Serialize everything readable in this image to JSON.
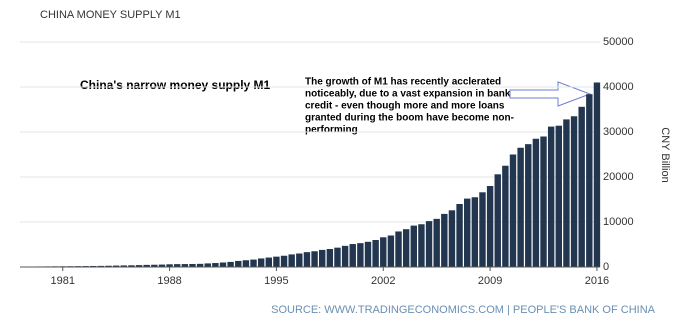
{
  "chart_data": {
    "type": "bar",
    "title": "CHINA MONEY SUPPLY M1",
    "annotation": "China's narrow money supply M1",
    "note": [
      "The growth of M1 has recently acclerated",
      "noticeably, due to a vast expansion in bank",
      "credit - even though more and more loans",
      "granted during the boom have become non-",
      "performing"
    ],
    "y_label": "CNY Billion",
    "source": "SOURCE: WWW.TRADINGECONOMICS.COM | PEOPLE'S BANK OF CHINA",
    "color": "#23364f",
    "grid": true,
    "x": [
      1978.5,
      1979,
      1979.5,
      1980,
      1980.5,
      1981,
      1981.5,
      1982,
      1982.5,
      1983,
      1983.5,
      1984,
      1984.5,
      1985,
      1985.5,
      1986,
      1986.5,
      1987,
      1987.5,
      1988,
      1988.5,
      1989,
      1989.5,
      1990,
      1990.5,
      1991,
      1991.5,
      1992,
      1992.5,
      1993,
      1993.5,
      1994,
      1994.5,
      1995,
      1995.5,
      1996,
      1996.5,
      1997,
      1997.5,
      1998,
      1998.5,
      1999,
      1999.5,
      2000,
      2000.5,
      2001,
      2001.5,
      2002,
      2002.5,
      2003,
      2003.5,
      2004,
      2004.5,
      2005,
      2005.5,
      2006,
      2006.5,
      2007,
      2007.5,
      2008,
      2008.5,
      2009,
      2009.5,
      2010,
      2010.5,
      2011,
      2011.5,
      2012,
      2012.5,
      2013,
      2013.5,
      2014,
      2014.5,
      2015,
      2015.5,
      2016
    ],
    "values": [
      100,
      110,
      120,
      135,
      150,
      160,
      175,
      190,
      205,
      225,
      245,
      280,
      320,
      350,
      380,
      420,
      470,
      500,
      540,
      600,
      640,
      650,
      670,
      700,
      800,
      880,
      1000,
      1130,
      1350,
      1500,
      1650,
      1900,
      2100,
      2300,
      2500,
      2800,
      3000,
      3300,
      3500,
      3800,
      4000,
      4300,
      4700,
      5100,
      5300,
      5600,
      6000,
      6600,
      7000,
      7900,
      8400,
      9200,
      9500,
      10200,
      10700,
      11800,
      12600,
      14000,
      15200,
      15500,
      16600,
      18000,
      20600,
      22500,
      25000,
      26500,
      27300,
      28500,
      29000,
      31200,
      31400,
      32800,
      33500,
      35600,
      38400,
      41000
    ],
    "xlim": [
      1978.2,
      2016.2
    ],
    "xticks": [
      1981,
      1988,
      1995,
      2002,
      2009,
      2016
    ],
    "ylim": [
      0,
      50000
    ],
    "yticks": [
      0,
      10000,
      20000,
      30000,
      40000,
      50000
    ]
  }
}
